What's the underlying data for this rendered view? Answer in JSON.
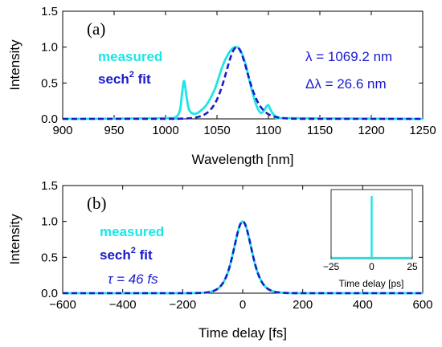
{
  "colors": {
    "measured": "#1ee5e5",
    "fit": "#1a1acc",
    "annotation": "#1a1acc"
  },
  "chart_data": [
    {
      "type": "line",
      "panel_label": "(a)",
      "xlabel": "Wavelength [nm]",
      "ylabel": "Intensity",
      "xlim": [
        900,
        1250
      ],
      "ylim": [
        0,
        1.5
      ],
      "xticks": [
        900,
        950,
        1000,
        1050,
        1100,
        1150,
        1200,
        1250
      ],
      "yticks": [
        0.0,
        0.5,
        1.0,
        1.5
      ],
      "ytick_labels": [
        "0.0",
        "0.5",
        "1.0",
        "1.5"
      ],
      "legend": {
        "measured": "measured",
        "fit_prefix": "sech",
        "fit_sup": "2",
        "fit_suffix": " fit"
      },
      "annotations": [
        "λ = 1069.2 nm",
        "Δλ = 26.6 nm"
      ],
      "series": [
        {
          "name": "measured",
          "x": [
            900,
            1000,
            1010,
            1014,
            1016,
            1018,
            1020,
            1022,
            1024,
            1028,
            1033,
            1040,
            1048,
            1055,
            1060,
            1065,
            1069,
            1073,
            1078,
            1083,
            1088,
            1092,
            1095,
            1098,
            1100,
            1102,
            1105,
            1110,
            1120,
            1250
          ],
          "y": [
            0,
            0.01,
            0.03,
            0.12,
            0.35,
            0.53,
            0.35,
            0.17,
            0.1,
            0.07,
            0.1,
            0.2,
            0.42,
            0.72,
            0.88,
            0.98,
            1.0,
            0.95,
            0.75,
            0.45,
            0.2,
            0.09,
            0.1,
            0.17,
            0.19,
            0.13,
            0.06,
            0.02,
            0.01,
            0
          ]
        },
        {
          "name": "sech² fit",
          "model": "sech2",
          "center": 1069.2,
          "fwhm": 26.6
        }
      ]
    },
    {
      "type": "line",
      "panel_label": "(b)",
      "xlabel": "Time delay [fs]",
      "ylabel": "Intensity",
      "xlim": [
        -600,
        600
      ],
      "ylim": [
        0,
        1.5
      ],
      "xticks": [
        -600,
        -400,
        -200,
        0,
        200,
        400,
        600
      ],
      "yticks": [
        0.0,
        0.5,
        1.0,
        1.5
      ],
      "ytick_labels": [
        "0.0",
        "0.5",
        "1.0",
        "1.5"
      ],
      "legend": {
        "measured": "measured",
        "fit_prefix": "sech",
        "fit_sup": "2",
        "fit_suffix": " fit"
      },
      "annotations": [
        "τ = 46 fs"
      ],
      "series": [
        {
          "name": "measured",
          "model": "sech2",
          "center": 0,
          "fwhm": 71
        },
        {
          "name": "sech² fit",
          "model": "sech2",
          "center": 0,
          "fwhm": 71
        }
      ],
      "inset": {
        "xlabel": "Time delay [ps]",
        "xlim": [
          -25,
          25
        ],
        "ylim": [
          0,
          1.1
        ],
        "xticks": [
          -25,
          0,
          25
        ],
        "peak": {
          "x": 0,
          "y": 1.0
        }
      }
    }
  ]
}
